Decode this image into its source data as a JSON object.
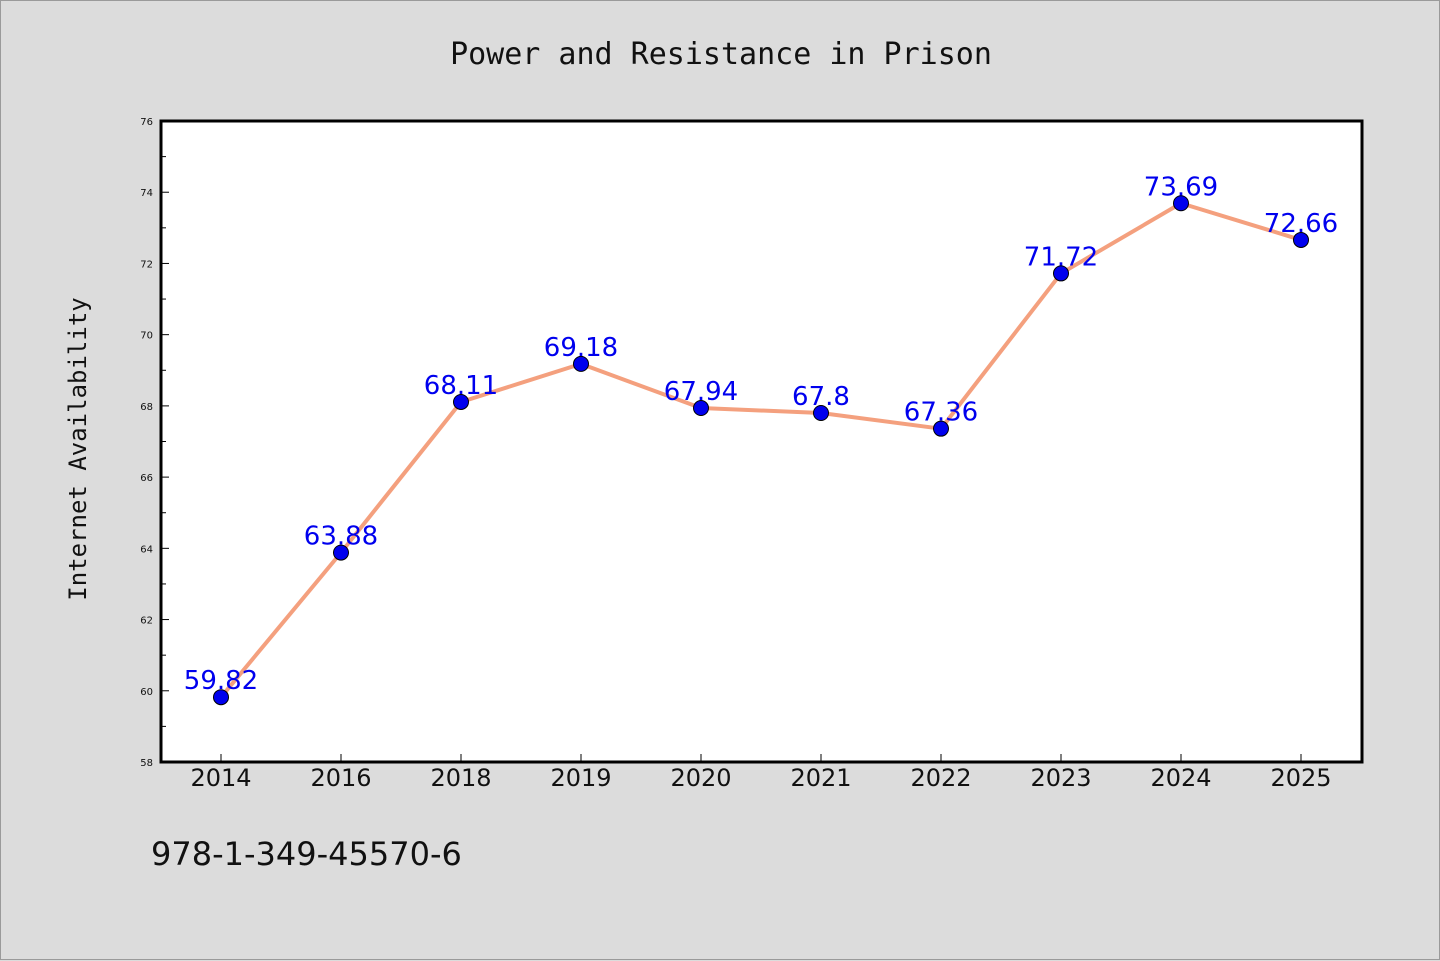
{
  "chart_data": {
    "type": "line",
    "title": "Power and Resistance in Prison",
    "xlabel": "",
    "ylabel": "Internet Availability",
    "categories": [
      "2014",
      "2016",
      "2018",
      "2019",
      "2020",
      "2021",
      "2022",
      "2023",
      "2024",
      "2025"
    ],
    "series": [
      {
        "values": [
          59.82,
          63.88,
          68.11,
          69.18,
          67.94,
          67.8,
          67.36,
          71.72,
          73.69,
          72.66
        ],
        "line_color": "#f4a07e",
        "marker_color": "#0000ee"
      }
    ],
    "data_labels": [
      "59.82",
      "63.88",
      "68.11",
      "69.18",
      "67.94",
      "67.8",
      "67.36",
      "71.72",
      "73.69",
      "72.66"
    ],
    "ylim": [
      58,
      76
    ],
    "yticks": [
      58,
      60,
      62,
      64,
      66,
      68,
      70,
      72,
      74,
      76
    ],
    "ytick_labels": [
      "58",
      "60",
      "62",
      "64",
      "66",
      "68",
      "70",
      "72",
      "74",
      "76"
    ],
    "grid": false,
    "plot_background": "#ffffff",
    "figure_background": "#dcdcdc"
  },
  "footer": {
    "isbn": "978-1-349-45570-6"
  }
}
